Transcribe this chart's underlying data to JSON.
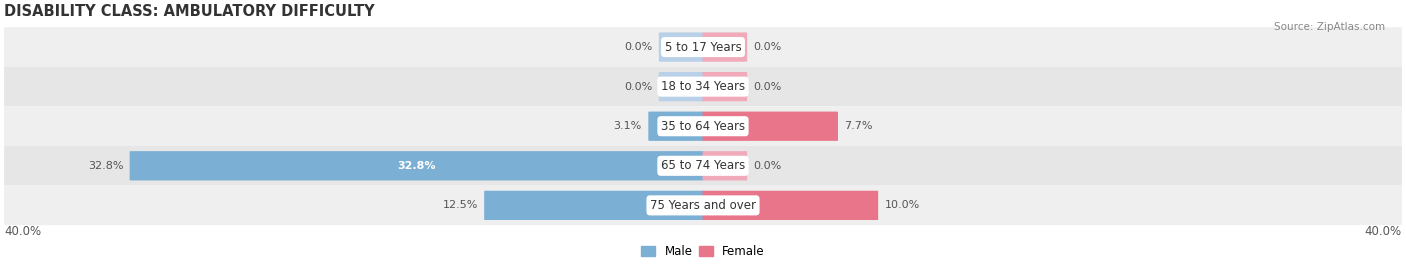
{
  "title": "DISABILITY CLASS: AMBULATORY DIFFICULTY",
  "source": "Source: ZipAtlas.com",
  "categories": [
    "5 to 17 Years",
    "18 to 34 Years",
    "35 to 64 Years",
    "65 to 74 Years",
    "75 Years and over"
  ],
  "male_values": [
    0.0,
    0.0,
    3.1,
    32.8,
    12.5
  ],
  "female_values": [
    0.0,
    0.0,
    7.7,
    0.0,
    10.0
  ],
  "male_color": "#7bafd4",
  "female_color": "#e8758a",
  "male_color_light": "#b8d0e8",
  "female_color_light": "#f0aaba",
  "row_bg_odd": "#efefef",
  "row_bg_even": "#e6e6e6",
  "axis_max": 40.0,
  "stub_size": 2.5,
  "title_fontsize": 10.5,
  "label_fontsize": 8.0,
  "tick_fontsize": 8.5,
  "category_fontsize": 8.5,
  "legend_fontsize": 8.5,
  "background_color": "#ffffff"
}
